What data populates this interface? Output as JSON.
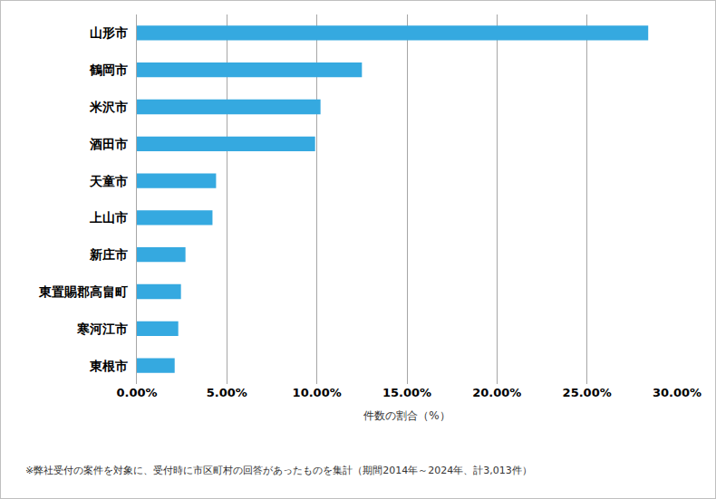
{
  "chart_data": {
    "type": "bar",
    "orientation": "horizontal",
    "categories": [
      "山形市",
      "鶴岡市",
      "米沢市",
      "酒田市",
      "天童市",
      "上山市",
      "新庄市",
      "東置賜郡高畠町",
      "寒河江市",
      "東根市"
    ],
    "values": [
      28.4,
      12.5,
      10.2,
      9.9,
      4.4,
      4.2,
      2.7,
      2.45,
      2.3,
      2.1
    ],
    "color": "#35a9e0",
    "xlabel": "件数の割合（%）",
    "xlim": [
      0,
      30
    ],
    "xticks": [
      {
        "value": 0,
        "label": "0.00%"
      },
      {
        "value": 5,
        "label": "5.00%"
      },
      {
        "value": 10,
        "label": "10.00%"
      },
      {
        "value": 15,
        "label": "15.00%"
      },
      {
        "value": 20,
        "label": "20.00%"
      },
      {
        "value": 25,
        "label": "25.00%"
      },
      {
        "value": 30,
        "label": "30.00%"
      }
    ],
    "grid": true,
    "annotation": "※弊社受付の案件を対象に、受付時に市区町村の回答があったものを集計（期間2014年～2024年、計3,013件）"
  }
}
